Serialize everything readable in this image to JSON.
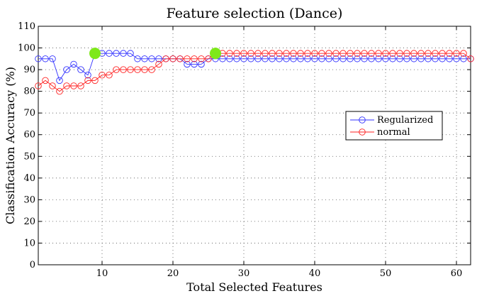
{
  "chart_data": {
    "type": "line",
    "title": "Feature selection (Dance)",
    "xlabel": "Total Selected Features",
    "ylabel": "Classification Accuracy (%)",
    "xlim": [
      1,
      62
    ],
    "ylim": [
      0,
      110
    ],
    "x_ticks": [
      10,
      20,
      30,
      40,
      50,
      60
    ],
    "y_ticks": [
      0,
      10,
      20,
      30,
      40,
      50,
      60,
      70,
      80,
      90,
      100,
      110
    ],
    "grid": true,
    "legend_position": "right",
    "x": [
      1,
      2,
      3,
      4,
      5,
      6,
      7,
      8,
      9,
      10,
      11,
      12,
      13,
      14,
      15,
      16,
      17,
      18,
      19,
      20,
      21,
      22,
      23,
      24,
      25,
      26,
      27,
      28,
      29,
      30,
      31,
      32,
      33,
      34,
      35,
      36,
      37,
      38,
      39,
      40,
      41,
      42,
      43,
      44,
      45,
      46,
      47,
      48,
      49,
      50,
      51,
      52,
      53,
      54,
      55,
      56,
      57,
      58,
      59,
      60,
      61,
      62
    ],
    "series": [
      {
        "name": "Regularized",
        "color": "#3030ff",
        "values": [
          95,
          95,
          95,
          85,
          90,
          92.5,
          90,
          87.5,
          97.5,
          97.5,
          97.5,
          97.5,
          97.5,
          97.5,
          95,
          95,
          95,
          95,
          95,
          95,
          95,
          92.5,
          92.5,
          92.5,
          95,
          95,
          95,
          95,
          95,
          95,
          95,
          95,
          95,
          95,
          95,
          95,
          95,
          95,
          95,
          95,
          95,
          95,
          95,
          95,
          95,
          95,
          95,
          95,
          95,
          95,
          95,
          95,
          95,
          95,
          95,
          95,
          95,
          95,
          95,
          95,
          95,
          95
        ]
      },
      {
        "name": "normal",
        "color": "#ff2020",
        "values": [
          82.5,
          85,
          82.5,
          80,
          82.5,
          82.5,
          82.5,
          85,
          85,
          87.5,
          87.5,
          90,
          90,
          90,
          90,
          90,
          90,
          92.5,
          95,
          95,
          95,
          95,
          95,
          95,
          95,
          97.5,
          97.5,
          97.5,
          97.5,
          97.5,
          97.5,
          97.5,
          97.5,
          97.5,
          97.5,
          97.5,
          97.5,
          97.5,
          97.5,
          97.5,
          97.5,
          97.5,
          97.5,
          97.5,
          97.5,
          97.5,
          97.5,
          97.5,
          97.5,
          97.5,
          97.5,
          97.5,
          97.5,
          97.5,
          97.5,
          97.5,
          97.5,
          97.5,
          97.5,
          97.5,
          97.5,
          95
        ]
      }
    ],
    "highlights": [
      {
        "x": 9,
        "y": 97.5,
        "color": "#7ee81a"
      },
      {
        "x": 26,
        "y": 97.5,
        "color": "#7ee81a"
      }
    ]
  }
}
